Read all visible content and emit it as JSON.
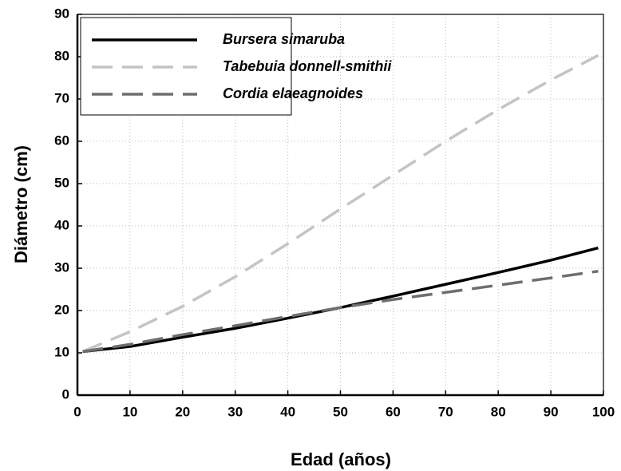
{
  "chart_data": {
    "type": "line",
    "xlabel": "Edad (años)",
    "ylabel": "Diámetro (cm)",
    "x": [
      1,
      10,
      20,
      30,
      40,
      50,
      60,
      70,
      80,
      90,
      99
    ],
    "series": [
      {
        "name": "Bursera simaruba",
        "color": "#000000",
        "style": "solid",
        "values": [
          10.3,
          11.5,
          13.7,
          15.8,
          18.2,
          20.7,
          23.4,
          26.2,
          29.0,
          31.9,
          34.8
        ]
      },
      {
        "name": "Tabebuia donnell-smithii",
        "color": "#c4c4c4",
        "style": "dashed",
        "values": [
          10.3,
          15.0,
          21.0,
          28.0,
          35.8,
          44.0,
          52.0,
          60.0,
          67.5,
          74.5,
          80.3
        ]
      },
      {
        "name": "Cordia elaeagnoides",
        "color": "#6e6e6e",
        "style": "dashed",
        "values": [
          10.3,
          12.0,
          14.3,
          16.4,
          18.6,
          20.7,
          22.6,
          24.3,
          26.0,
          27.7,
          29.3
        ]
      }
    ],
    "xlim": [
      0,
      100
    ],
    "ylim": [
      0,
      90
    ],
    "xticks": [
      0,
      10,
      20,
      30,
      40,
      50,
      60,
      70,
      80,
      90,
      100
    ],
    "yticks": [
      0,
      10,
      20,
      30,
      40,
      50,
      60,
      70,
      80,
      90
    ],
    "grid": true,
    "legend": "upper left"
  }
}
